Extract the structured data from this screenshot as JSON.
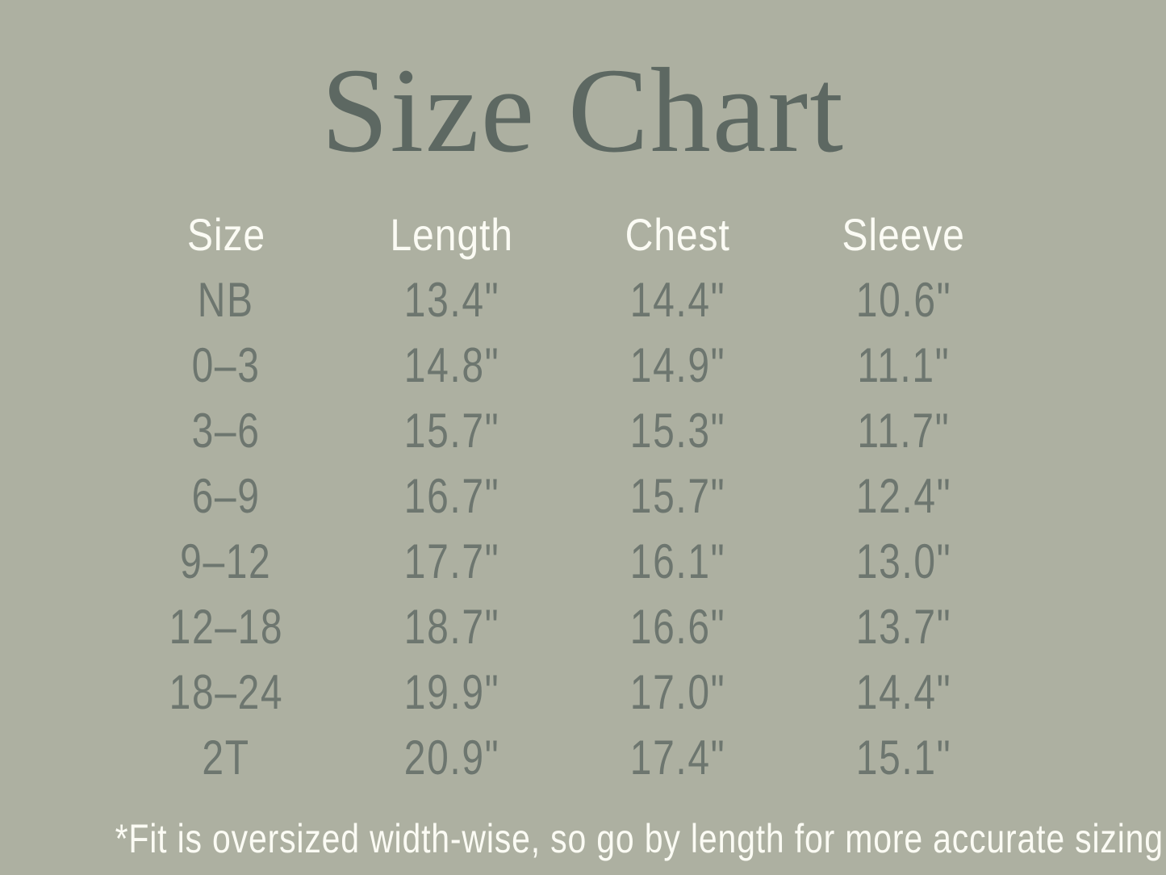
{
  "title": "Size Chart",
  "table": {
    "headers": [
      "Size",
      "Length",
      "Chest",
      "Sleeve"
    ],
    "rows": [
      {
        "size": "NB",
        "length": "13.4\"",
        "chest": "14.4\"",
        "sleeve": "10.6\""
      },
      {
        "size": "0–3",
        "length": "14.8\"",
        "chest": "14.9\"",
        "sleeve": "11.1\""
      },
      {
        "size": "3–6",
        "length": "15.7\"",
        "chest": "15.3\"",
        "sleeve": "11.7\""
      },
      {
        "size": "6–9",
        "length": "16.7\"",
        "chest": "15.7\"",
        "sleeve": "12.4\""
      },
      {
        "size": "9–12",
        "length": "17.7\"",
        "chest": "16.1\"",
        "sleeve": "13.0\""
      },
      {
        "size": "12–18",
        "length": "18.7\"",
        "chest": "16.6\"",
        "sleeve": "13.7\""
      },
      {
        "size": "18–24",
        "length": "19.9\"",
        "chest": "17.0\"",
        "sleeve": "14.4\""
      },
      {
        "size": "2T",
        "length": "20.9\"",
        "chest": "17.4\"",
        "sleeve": "15.1\""
      }
    ]
  },
  "footnote": "*Fit is oversized width-wise, so go by length for more accurate sizing",
  "colors": {
    "background": "#adb0a1",
    "title_text": "#5d6862",
    "table_text": "#6d766f",
    "light_text": "#fbfbf4"
  },
  "chart_data": {
    "type": "table",
    "title": "Size Chart",
    "columns": [
      "Size",
      "Length",
      "Chest",
      "Sleeve"
    ],
    "units": "inches",
    "rows": [
      [
        "NB",
        13.4,
        14.4,
        10.6
      ],
      [
        "0–3",
        14.8,
        14.9,
        11.1
      ],
      [
        "3–6",
        15.7,
        15.3,
        11.7
      ],
      [
        "6–9",
        16.7,
        15.7,
        12.4
      ],
      [
        "9–12",
        17.7,
        16.1,
        13.0
      ],
      [
        "12–18",
        18.7,
        16.6,
        13.7
      ],
      [
        "18–24",
        19.9,
        17.0,
        14.4
      ],
      [
        "2T",
        20.9,
        17.4,
        15.1
      ]
    ],
    "note": "*Fit is oversized width-wise, so go by length for more accurate sizing"
  }
}
